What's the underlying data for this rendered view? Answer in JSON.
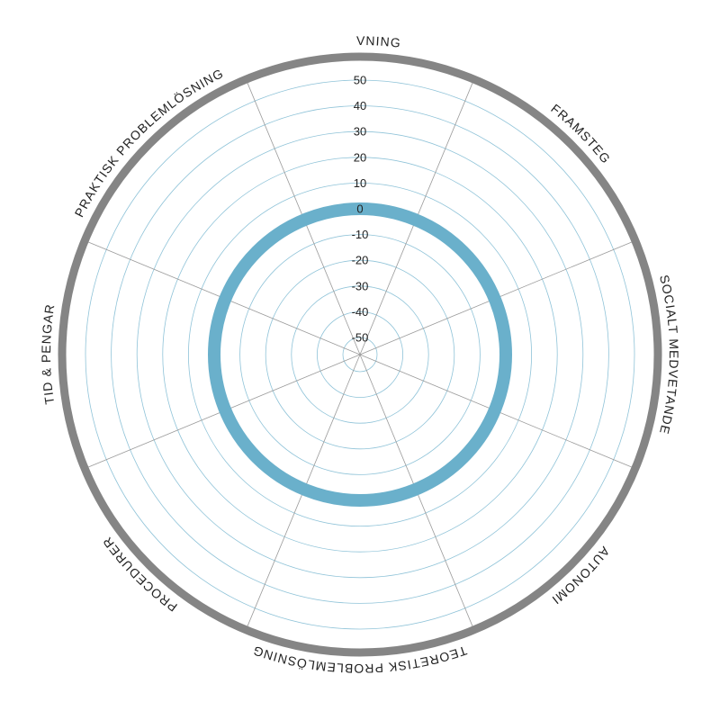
{
  "chart_data": {
    "type": "radar",
    "axes": [
      "OMGIVNING",
      "FRAMSTEG",
      "SOCIALT MEDVETANDE",
      "AUTONOMI",
      "TEORETISK PROBLEMLÖSNING",
      "PROCEDURER",
      "TID & PENGAR",
      "PRAKTISK PROBLEMLÖSNING"
    ],
    "ticks": [
      -50,
      -40,
      -30,
      -20,
      -10,
      0,
      10,
      20,
      30,
      40,
      50
    ],
    "rlim": [
      -50,
      50
    ],
    "series": [
      {
        "values": [
          0,
          0,
          0,
          0,
          0,
          0,
          0,
          0
        ]
      }
    ],
    "grid": true,
    "legend": "none"
  },
  "colors": {
    "outer_ring": "#858585",
    "grid_ring": "#8fc3d8",
    "spoke": "#9a9a9a",
    "series": "#6ab0cb",
    "text": "#222222"
  }
}
